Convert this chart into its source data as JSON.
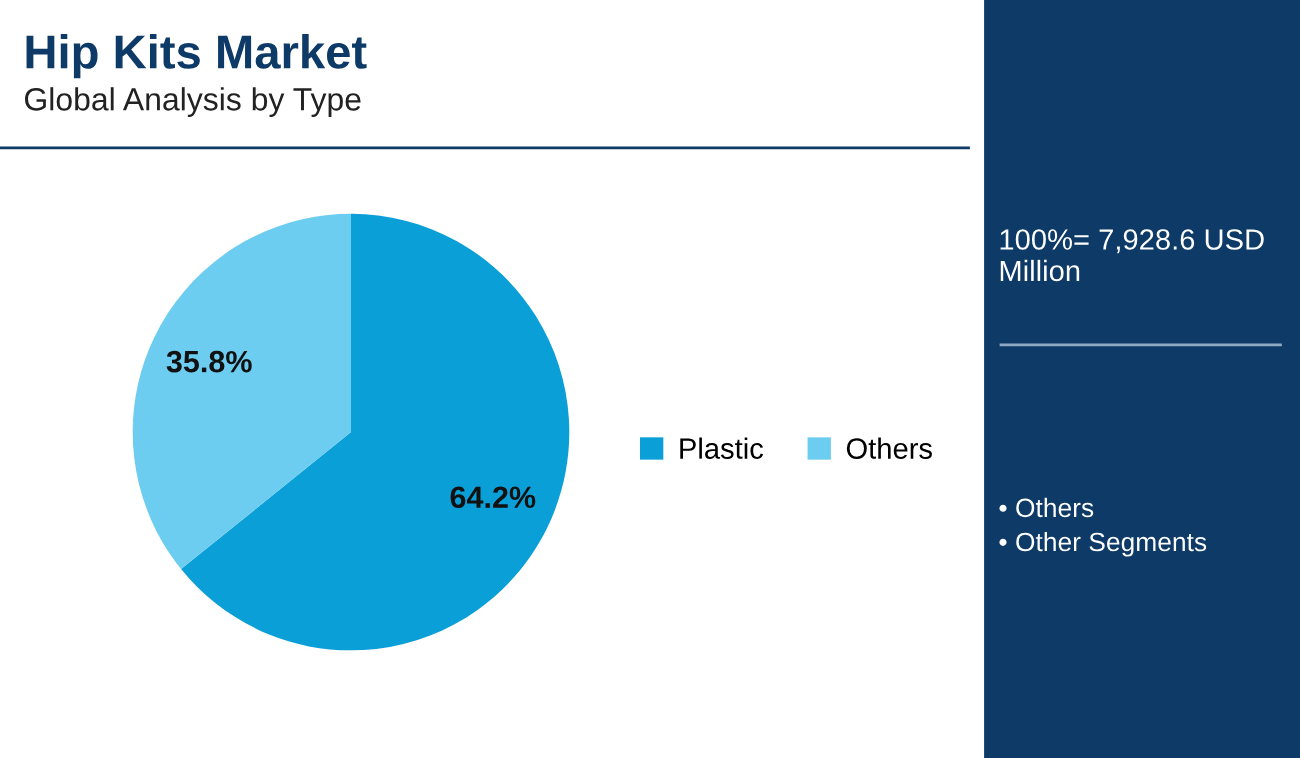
{
  "chart_data": {
    "type": "pie",
    "title": "Hip Kits Market",
    "subtitle": "Global Analysis by Type",
    "categories": [
      "Plastic",
      "Others"
    ],
    "values": [
      64.2,
      35.8
    ],
    "colors": [
      "#0b9fd8",
      "#6ccdf1"
    ],
    "value_labels": [
      "64.2%",
      "35.8%"
    ],
    "legend": "right",
    "annotations": [
      "100%= 7,928.6 USD Million",
      "• Others",
      "• Other Segments"
    ]
  }
}
